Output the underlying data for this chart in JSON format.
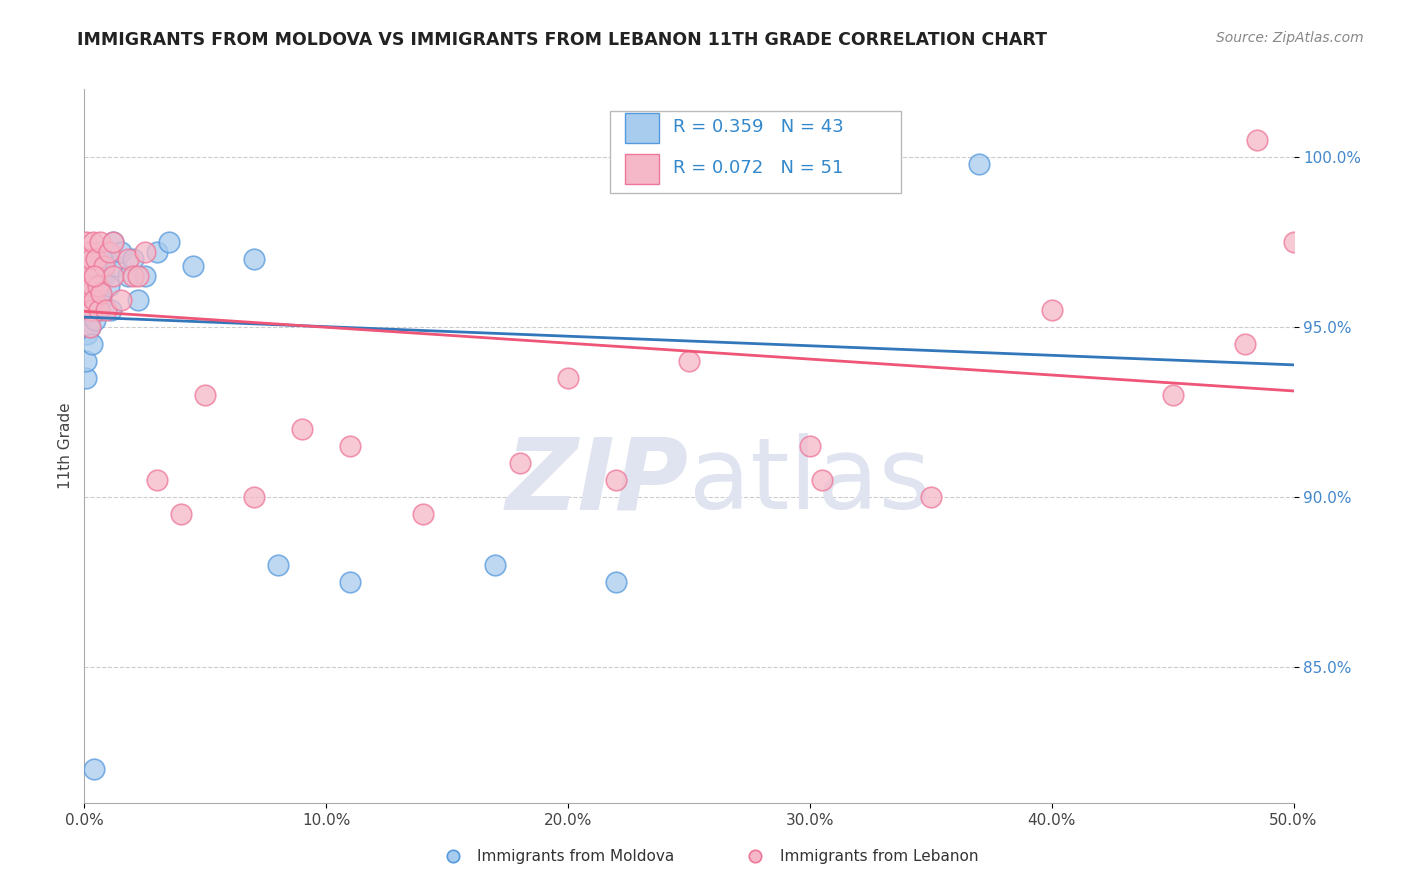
{
  "title": "IMMIGRANTS FROM MOLDOVA VS IMMIGRANTS FROM LEBANON 11TH GRADE CORRELATION CHART",
  "source": "Source: ZipAtlas.com",
  "ylabel_label": "11th Grade",
  "xlim": [
    0.0,
    50.0
  ],
  "ylim": [
    81.0,
    102.0
  ],
  "yticks": [
    85.0,
    90.0,
    95.0,
    100.0
  ],
  "ytick_labels": [
    "85.0%",
    "90.0%",
    "95.0%",
    "100.0%"
  ],
  "xticks": [
    0.0,
    10.0,
    20.0,
    30.0,
    40.0,
    50.0
  ],
  "legend_R1": "R = 0.359",
  "legend_N1": "N = 43",
  "legend_R2": "R = 0.072",
  "legend_N2": "N = 51",
  "color_moldova_fill": "#A8CCEE",
  "color_moldova_edge": "#5599DD",
  "color_lebanon_fill": "#F5B8C8",
  "color_lebanon_edge": "#EE7799",
  "color_moldova_line": "#3377BB",
  "color_lebanon_line": "#EE5577",
  "watermark_color": "#E0E4F0",
  "moldova_x": [
    0.05,
    0.08,
    0.1,
    0.12,
    0.15,
    0.18,
    0.2,
    0.22,
    0.25,
    0.28,
    0.3,
    0.32,
    0.35,
    0.38,
    0.4,
    0.45,
    0.5,
    0.55,
    0.6,
    0.65,
    0.7,
    0.8,
    0.9,
    1.0,
    1.1,
    1.2,
    1.3,
    1.5,
    1.8,
    2.0,
    2.2,
    2.5,
    3.0,
    3.5,
    4.5,
    7.0,
    8.0,
    11.0,
    17.0,
    22.0,
    30.0,
    37.0,
    0.4
  ],
  "moldova_y": [
    93.5,
    94.0,
    95.5,
    94.8,
    96.0,
    95.5,
    96.2,
    95.8,
    95.0,
    96.5,
    94.5,
    96.8,
    95.5,
    97.0,
    96.5,
    95.2,
    96.8,
    95.5,
    97.2,
    96.0,
    95.8,
    96.5,
    97.0,
    96.2,
    95.5,
    97.5,
    96.8,
    97.2,
    96.5,
    97.0,
    95.8,
    96.5,
    97.2,
    97.5,
    96.8,
    97.0,
    88.0,
    87.5,
    88.0,
    87.5,
    99.5,
    99.8,
    82.0
  ],
  "lebanon_x": [
    0.05,
    0.08,
    0.1,
    0.12,
    0.15,
    0.18,
    0.2,
    0.22,
    0.25,
    0.28,
    0.3,
    0.32,
    0.35,
    0.4,
    0.45,
    0.5,
    0.55,
    0.6,
    0.65,
    0.7,
    0.8,
    0.9,
    1.0,
    1.2,
    1.5,
    1.8,
    2.0,
    2.5,
    3.0,
    4.0,
    5.0,
    7.0,
    9.0,
    11.0,
    14.0,
    18.0,
    20.0,
    22.0,
    25.0,
    30.0,
    35.0,
    40.0,
    45.0,
    48.0,
    50.0,
    0.25,
    0.4,
    1.2,
    2.2,
    30.5,
    48.5
  ],
  "lebanon_y": [
    97.5,
    96.8,
    97.0,
    96.5,
    95.8,
    97.2,
    96.0,
    95.5,
    96.8,
    97.0,
    95.5,
    96.2,
    97.5,
    95.8,
    96.5,
    97.0,
    96.2,
    95.5,
    97.5,
    96.0,
    96.8,
    95.5,
    97.2,
    96.5,
    95.8,
    97.0,
    96.5,
    97.2,
    90.5,
    89.5,
    93.0,
    90.0,
    92.0,
    91.5,
    89.5,
    91.0,
    93.5,
    90.5,
    94.0,
    91.5,
    90.0,
    95.5,
    93.0,
    94.5,
    97.5,
    95.0,
    96.5,
    97.5,
    96.5,
    90.5,
    100.5
  ]
}
